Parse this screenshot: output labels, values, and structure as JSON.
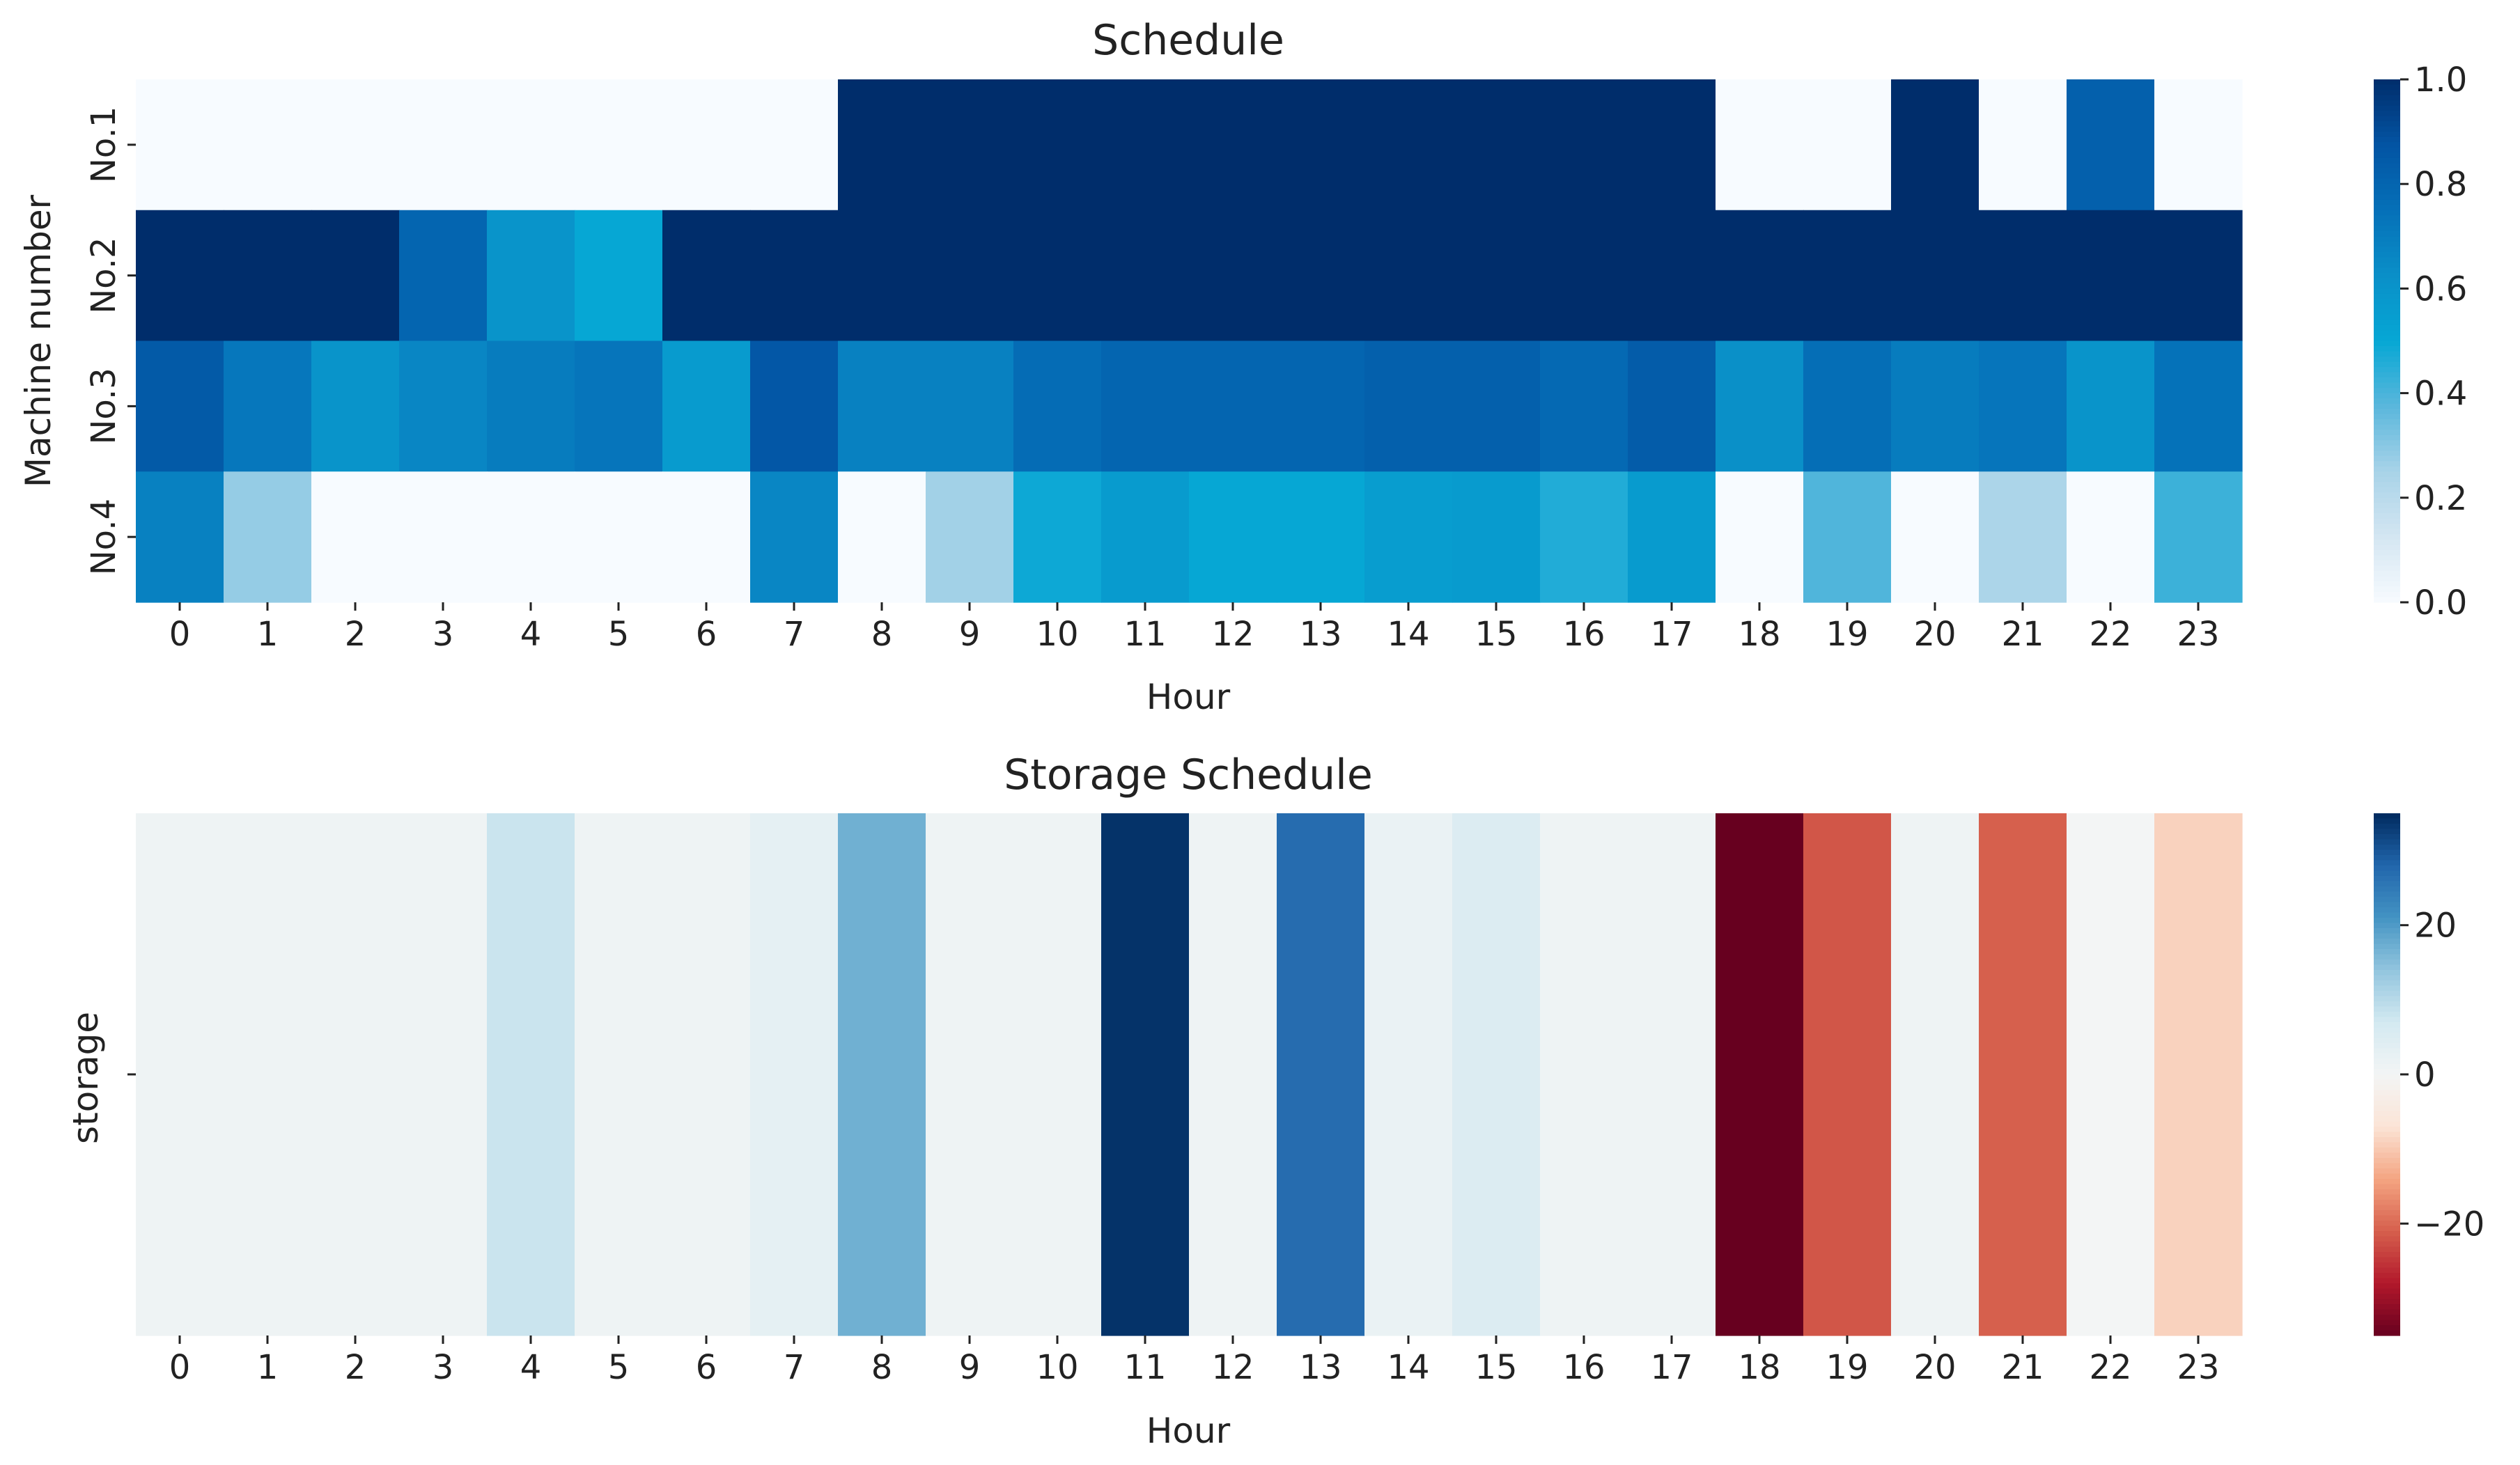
{
  "chart_data": [
    {
      "type": "heatmap",
      "title": "Schedule",
      "xlabel": "Hour",
      "ylabel": "Machine number",
      "x": [
        "0",
        "1",
        "2",
        "3",
        "4",
        "5",
        "6",
        "7",
        "8",
        "9",
        "10",
        "11",
        "12",
        "13",
        "14",
        "15",
        "16",
        "17",
        "18",
        "19",
        "20",
        "21",
        "22",
        "23"
      ],
      "rows": [
        "No.1",
        "No.2",
        "No.3",
        "No.4"
      ],
      "values": [
        [
          0.0,
          0.0,
          0.0,
          0.0,
          0.0,
          0.0,
          0.0,
          0.0,
          1.0,
          1.0,
          1.0,
          1.0,
          1.0,
          1.0,
          1.0,
          1.0,
          1.0,
          1.0,
          0.0,
          0.0,
          1.0,
          0.0,
          0.82,
          0.0
        ],
        [
          1.0,
          1.0,
          1.0,
          0.8,
          0.6,
          0.5,
          1.0,
          1.0,
          1.0,
          1.0,
          1.0,
          1.0,
          1.0,
          1.0,
          1.0,
          1.0,
          1.0,
          1.0,
          1.0,
          1.0,
          1.0,
          1.0,
          1.0,
          1.0
        ],
        [
          0.85,
          0.72,
          0.6,
          0.66,
          0.7,
          0.73,
          0.56,
          0.86,
          0.68,
          0.68,
          0.77,
          0.8,
          0.8,
          0.8,
          0.82,
          0.82,
          0.78,
          0.84,
          0.62,
          0.76,
          0.7,
          0.73,
          0.6,
          0.74
        ],
        [
          0.68,
          0.28,
          0.0,
          0.0,
          0.0,
          0.0,
          0.0,
          0.66,
          0.0,
          0.26,
          0.49,
          0.56,
          0.5,
          0.5,
          0.55,
          0.56,
          0.46,
          0.56,
          0.0,
          0.39,
          0.0,
          0.24,
          0.0,
          0.42
        ]
      ],
      "colormap": "Blues",
      "colorbar": {
        "min": 0.0,
        "max": 1.0,
        "ticks": [
          "0.0",
          "0.2",
          "0.4",
          "0.6",
          "0.8",
          "1.0"
        ]
      }
    },
    {
      "type": "heatmap",
      "title": "Storage Schedule",
      "xlabel": "Hour",
      "ylabel": "storage",
      "x": [
        "0",
        "1",
        "2",
        "3",
        "4",
        "5",
        "6",
        "7",
        "8",
        "9",
        "10",
        "11",
        "12",
        "13",
        "14",
        "15",
        "16",
        "17",
        "18",
        "19",
        "20",
        "21",
        "22",
        "23"
      ],
      "rows": [
        "storage"
      ],
      "values": [
        [
          1,
          1,
          1,
          1,
          8,
          1,
          1,
          3,
          17,
          1,
          1,
          34,
          1,
          27,
          2,
          5,
          1,
          1,
          -35,
          -22,
          1,
          -21,
          0,
          -9
        ]
      ],
      "colormap": "RdBu",
      "colorbar": {
        "min": -35,
        "max": 35,
        "ticks": [
          "20",
          "0",
          "−20"
        ]
      }
    }
  ]
}
